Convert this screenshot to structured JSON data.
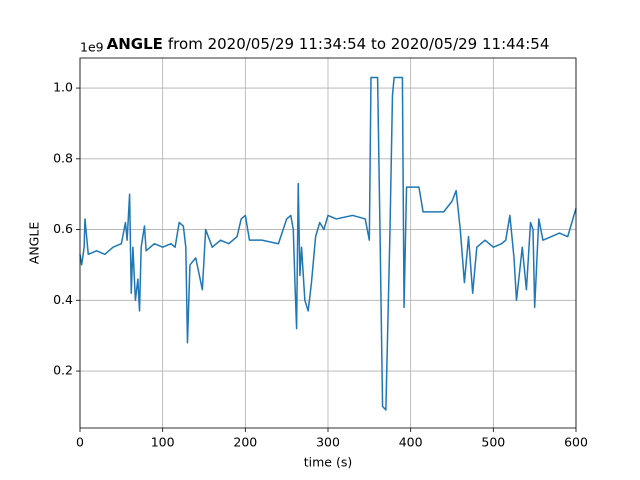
{
  "chart_data": {
    "type": "line",
    "title_bold": "ANGLE",
    "title": "from 2020/05/29 11:34:54 to 2020/05/29 11:44:54",
    "x_label": "time (s)",
    "y_label": "ANGLE",
    "y_offset_text": "1e9",
    "x": [
      0,
      2,
      5,
      6,
      10,
      20,
      30,
      40,
      50,
      55,
      57,
      60,
      62,
      64,
      67,
      70,
      72,
      74,
      78,
      80,
      90,
      100,
      110,
      115,
      120,
      125,
      128,
      130,
      133,
      140,
      148,
      152,
      160,
      170,
      180,
      190,
      195,
      200,
      205,
      220,
      240,
      250,
      255,
      258,
      260,
      262,
      264,
      266,
      268,
      272,
      276,
      280,
      285,
      290,
      295,
      300,
      310,
      330,
      345,
      350,
      352,
      360,
      363,
      366,
      370,
      375,
      378,
      380,
      390,
      392,
      395,
      410,
      415,
      440,
      450,
      455,
      460,
      465,
      470,
      475,
      480,
      490,
      500,
      510,
      515,
      520,
      525,
      528,
      535,
      540,
      545,
      548,
      550,
      555,
      560,
      570,
      580,
      590,
      595,
      600
    ],
    "series": [
      {
        "name": "ANGLE",
        "color": "#1f77b4",
        "values": [
          0.53,
          0.5,
          0.55,
          0.63,
          0.53,
          0.54,
          0.53,
          0.55,
          0.56,
          0.62,
          0.57,
          0.7,
          0.42,
          0.55,
          0.4,
          0.46,
          0.37,
          0.55,
          0.61,
          0.54,
          0.56,
          0.55,
          0.56,
          0.55,
          0.62,
          0.61,
          0.55,
          0.28,
          0.5,
          0.52,
          0.43,
          0.6,
          0.55,
          0.57,
          0.56,
          0.58,
          0.63,
          0.64,
          0.57,
          0.57,
          0.56,
          0.63,
          0.64,
          0.6,
          0.45,
          0.32,
          0.73,
          0.47,
          0.55,
          0.4,
          0.37,
          0.45,
          0.58,
          0.62,
          0.6,
          0.64,
          0.63,
          0.64,
          0.63,
          0.57,
          1.03,
          1.03,
          0.58,
          0.1,
          0.09,
          0.6,
          0.98,
          1.03,
          1.03,
          0.38,
          0.72,
          0.72,
          0.65,
          0.65,
          0.68,
          0.71,
          0.6,
          0.45,
          0.58,
          0.42,
          0.55,
          0.57,
          0.55,
          0.56,
          0.57,
          0.64,
          0.52,
          0.4,
          0.55,
          0.43,
          0.62,
          0.6,
          0.38,
          0.63,
          0.57,
          0.58,
          0.59,
          0.58,
          0.62,
          0.66
        ]
      }
    ],
    "xlim": [
      0,
      600
    ],
    "xticks": [
      0,
      100,
      200,
      300,
      400,
      500,
      600
    ],
    "ylim": [
      0.039,
      1.085
    ],
    "yticks": [
      0.2,
      0.4,
      0.6,
      0.8,
      {
        "value": 1,
        "label": "1.0"
      }
    ],
    "grid": true
  }
}
